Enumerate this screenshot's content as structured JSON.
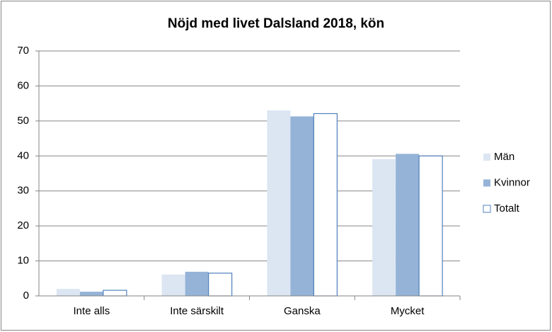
{
  "chart_data": {
    "type": "bar",
    "title": "Nöjd med livet Dalsland 2018, kön",
    "categories": [
      "Inte alls",
      "Inte särskilt",
      "Ganska",
      "Mycket"
    ],
    "series": [
      {
        "name": "Män",
        "color": "#dce6f2",
        "values": [
          2.0,
          6.1,
          53.0,
          39.1
        ]
      },
      {
        "name": "Kvinnor",
        "color": "#95b3d7",
        "values": [
          1.2,
          6.9,
          51.3,
          40.6
        ]
      },
      {
        "name": "Totalt",
        "color": "#ffffff",
        "edgecolor": "#4f81bd",
        "values": [
          1.6,
          6.5,
          52.1,
          40.0
        ]
      }
    ],
    "ylim": [
      0,
      70
    ],
    "yticks": [
      0,
      10,
      20,
      30,
      40,
      50,
      60,
      70
    ],
    "grid": true,
    "legend": "right"
  }
}
